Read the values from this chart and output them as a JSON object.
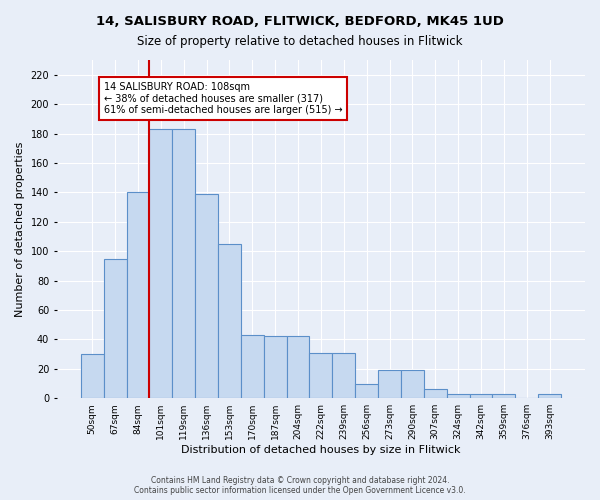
{
  "title_line1": "14, SALISBURY ROAD, FLITWICK, BEDFORD, MK45 1UD",
  "title_line2": "Size of property relative to detached houses in Flitwick",
  "xlabel": "Distribution of detached houses by size in Flitwick",
  "ylabel": "Number of detached properties",
  "bar_labels": [
    "50sqm",
    "67sqm",
    "84sqm",
    "101sqm",
    "119sqm",
    "136sqm",
    "153sqm",
    "170sqm",
    "187sqm",
    "204sqm",
    "222sqm",
    "239sqm",
    "256sqm",
    "273sqm",
    "290sqm",
    "307sqm",
    "324sqm",
    "342sqm",
    "359sqm",
    "376sqm",
    "393sqm"
  ],
  "bar_values": [
    30,
    95,
    140,
    183,
    183,
    139,
    105,
    43,
    42,
    42,
    31,
    31,
    10,
    19,
    19,
    6,
    3,
    3,
    3,
    0,
    3
  ],
  "bar_color": "#c6d9f0",
  "bar_edge_color": "#5b8fc9",
  "vline_color": "#cc0000",
  "vline_x_index": 3,
  "annotation_text": "14 SALISBURY ROAD: 108sqm\n← 38% of detached houses are smaller (317)\n61% of semi-detached houses are larger (515) →",
  "annotation_box_color": "#ffffff",
  "annotation_box_edge": "#cc0000",
  "ylim": [
    0,
    230
  ],
  "yticks": [
    0,
    20,
    40,
    60,
    80,
    100,
    120,
    140,
    160,
    180,
    200,
    220
  ],
  "footnote": "Contains HM Land Registry data © Crown copyright and database right 2024.\nContains public sector information licensed under the Open Government Licence v3.0.",
  "background_color": "#e8eef8",
  "grid_color": "#ffffff",
  "title1_fontsize": 9.5,
  "title2_fontsize": 8.5,
  "ylabel_fontsize": 8,
  "xlabel_fontsize": 8,
  "tick_fontsize": 7,
  "xtick_fontsize": 6.5,
  "footnote_fontsize": 5.5
}
